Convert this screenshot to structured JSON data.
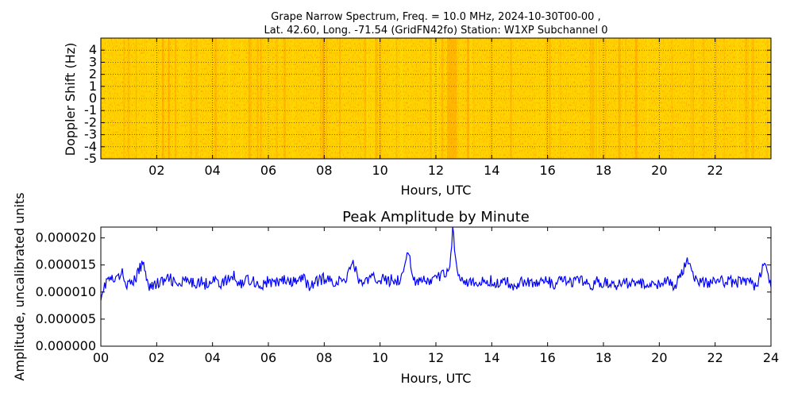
{
  "chart_data": [
    {
      "type": "heatmap",
      "title_line1": "Grape Narrow Spectrum, Freq. = 10.0 MHz, 2024-10-30T00-00 ,",
      "title_line2": "Lat.  42.60, Long. -71.54 (GridFN42fo) Station: W1XP Subchannel 0",
      "xlabel": "Hours, UTC",
      "ylabel": "Doppler Shift (Hz)",
      "xlim": [
        0,
        24
      ],
      "ylim": [
        -5,
        5
      ],
      "x_ticks": [
        2,
        4,
        6,
        8,
        10,
        12,
        14,
        16,
        18,
        20,
        22
      ],
      "x_tick_labels": [
        "02",
        "04",
        "06",
        "08",
        "10",
        "12",
        "14",
        "16",
        "18",
        "20",
        "22"
      ],
      "y_ticks": [
        4,
        3,
        2,
        1,
        0,
        -1,
        -2,
        -3,
        -4,
        -5
      ],
      "y_tick_labels": [
        "4",
        "3",
        "2",
        "1",
        "0",
        "-1",
        "-2",
        "-3",
        "-4",
        "-5"
      ],
      "grid": true,
      "colors": {
        "base": "#ffd400",
        "hot": "#ff6a00",
        "cool": "#f4f000"
      }
    },
    {
      "type": "line",
      "title": "Peak Amplitude by Minute",
      "xlabel": "Hours, UTC",
      "ylabel": "Amplitude, uncalibrated units",
      "xlim": [
        0,
        24
      ],
      "ylim": [
        0,
        2.2e-05
      ],
      "x_ticks": [
        0,
        2,
        4,
        6,
        8,
        10,
        12,
        14,
        16,
        18,
        20,
        22,
        24
      ],
      "x_tick_labels": [
        "00",
        "02",
        "04",
        "06",
        "08",
        "10",
        "12",
        "14",
        "16",
        "18",
        "20",
        "22",
        "24"
      ],
      "y_ticks": [
        0,
        5e-06,
        1e-05,
        1.5e-05,
        2e-05
      ],
      "y_tick_labels": [
        "0.000000",
        "0.000005",
        "0.000010",
        "0.000015",
        "0.000020"
      ],
      "series_color": "#0000ff",
      "x": [
        0,
        0.25,
        0.5,
        0.75,
        1,
        1.25,
        1.5,
        1.75,
        2,
        2.25,
        2.5,
        2.75,
        3,
        3.25,
        3.5,
        3.75,
        4,
        4.25,
        4.5,
        4.75,
        5,
        5.25,
        5.5,
        5.75,
        6,
        6.25,
        6.5,
        6.75,
        7,
        7.25,
        7.5,
        7.75,
        8,
        8.25,
        8.5,
        8.75,
        9,
        9.25,
        9.5,
        9.75,
        10,
        10.25,
        10.5,
        10.75,
        11,
        11.25,
        11.5,
        11.75,
        12,
        12.25,
        12.5,
        12.6,
        12.7,
        12.8,
        13,
        13.25,
        13.5,
        13.75,
        14,
        14.25,
        14.5,
        14.75,
        15,
        15.25,
        15.5,
        15.75,
        16,
        16.25,
        16.5,
        16.75,
        17,
        17.25,
        17.5,
        17.75,
        18,
        18.25,
        18.5,
        18.75,
        19,
        19.25,
        19.5,
        19.75,
        20,
        20.25,
        20.5,
        20.75,
        21,
        21.25,
        21.5,
        21.75,
        22,
        22.25,
        22.5,
        22.75,
        23,
        23.25,
        23.5,
        23.75,
        24
      ],
      "y": [
        9.5e-06,
        1.25e-05,
        1.2e-05,
        1.35e-05,
        1.1e-05,
        1.25e-05,
        1.55e-05,
        1.1e-05,
        1.15e-05,
        1.2e-05,
        1.25e-05,
        1.1e-05,
        1.2e-05,
        1.15e-05,
        1.2e-05,
        1.15e-05,
        1.25e-05,
        1.15e-05,
        1.2e-05,
        1.3e-05,
        1.15e-05,
        1.25e-05,
        1.2e-05,
        1.1e-05,
        1.2e-05,
        1.15e-05,
        1.25e-05,
        1.15e-05,
        1.2e-05,
        1.25e-05,
        1.1e-05,
        1.2e-05,
        1.25e-05,
        1.2e-05,
        1.2e-05,
        1.2e-05,
        1.6e-05,
        1.2e-05,
        1.2e-05,
        1.25e-05,
        1.25e-05,
        1.2e-05,
        1.25e-05,
        1.2e-05,
        1.8e-05,
        1.15e-05,
        1.2e-05,
        1.2e-05,
        1.25e-05,
        1.3e-05,
        1.5e-05,
        2.15e-05,
        1.7e-05,
        1.35e-05,
        1.25e-05,
        1.15e-05,
        1.15e-05,
        1.2e-05,
        1.2e-05,
        1.15e-05,
        1.2e-05,
        1.1e-05,
        1.2e-05,
        1.2e-05,
        1.15e-05,
        1.2e-05,
        1.2e-05,
        1.1e-05,
        1.25e-05,
        1.15e-05,
        1.2e-05,
        1.2e-05,
        1.1e-05,
        1.2e-05,
        1.15e-05,
        1.2e-05,
        1.1e-05,
        1.2e-05,
        1.15e-05,
        1.2e-05,
        1.1e-05,
        1.2e-05,
        1.15e-05,
        1.2e-05,
        1.1e-05,
        1.25e-05,
        1.65e-05,
        1.2e-05,
        1.2e-05,
        1.15e-05,
        1.25e-05,
        1.2e-05,
        1.2e-05,
        1.15e-05,
        1.25e-05,
        1.2e-05,
        1.1e-05,
        1.55e-05,
        1.1e-05
      ]
    }
  ]
}
